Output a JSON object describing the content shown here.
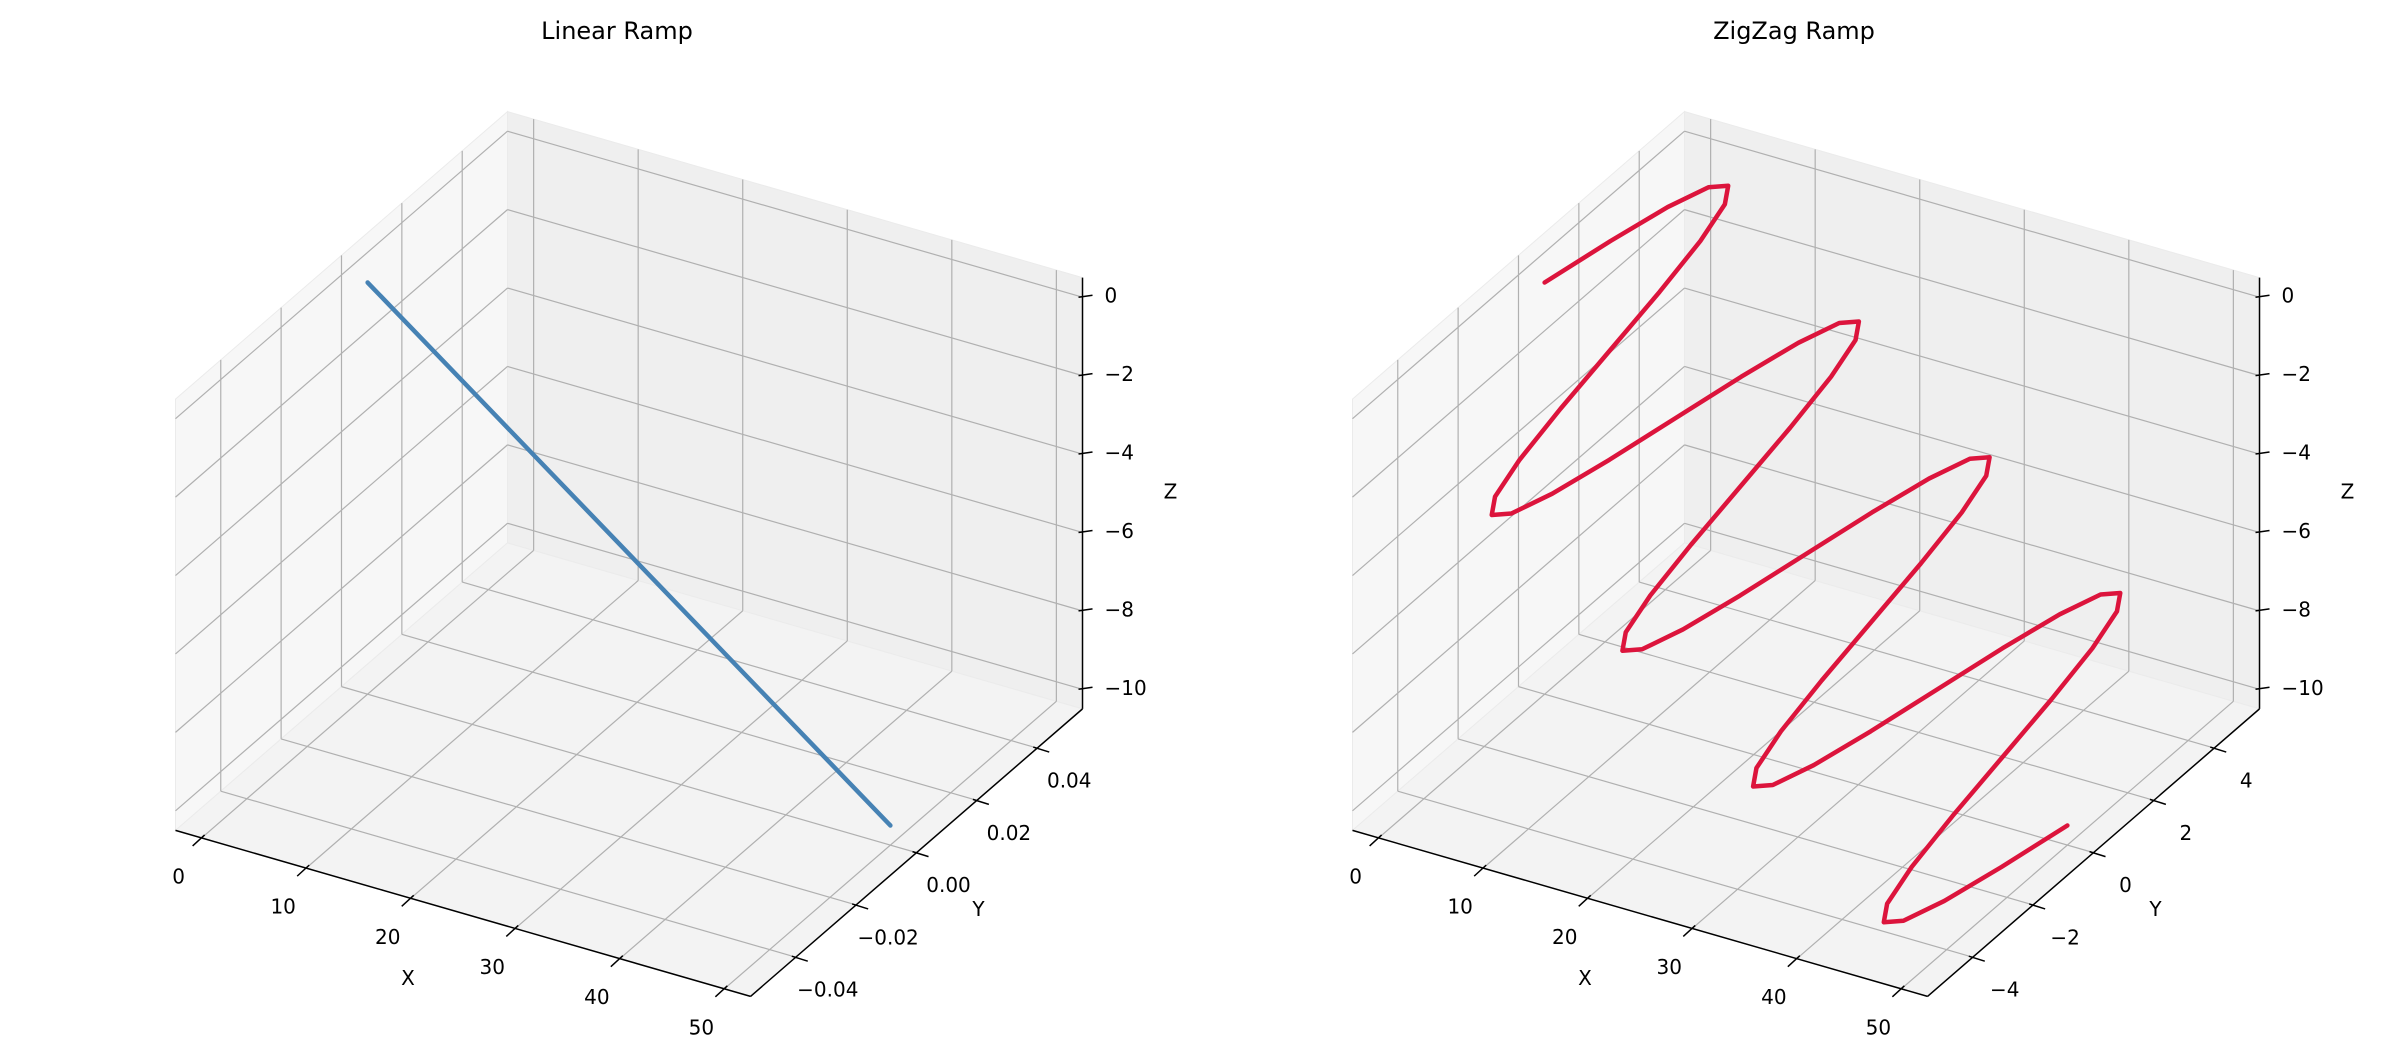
{
  "chart_data": [
    {
      "type": "line3d",
      "title": "Linear Ramp",
      "xlabel": "X",
      "ylabel": "Y",
      "zlabel": "Z",
      "series": [
        {
          "color": "#4682b4",
          "x": [
            0,
            50
          ],
          "y": [
            0,
            0
          ],
          "z": [
            0,
            -10
          ]
        }
      ],
      "xlim": [
        -2.5,
        52.5
      ],
      "ylim": [
        -0.055,
        0.055
      ],
      "zlim": [
        -10.5,
        0.5
      ],
      "xticks": [
        0,
        10,
        20,
        30,
        40,
        50
      ],
      "yticks": [
        {
          "value": -0.04,
          "label": "−0.04"
        },
        {
          "value": -0.02,
          "label": "−0.02"
        },
        {
          "value": 0,
          "label": "0.00"
        },
        {
          "value": 0.02,
          "label": "0.02"
        },
        {
          "value": 0.04,
          "label": "0.04"
        }
      ],
      "zticks": [
        {
          "value": -10,
          "label": "−10"
        },
        {
          "value": -8,
          "label": "−8"
        },
        {
          "value": -6,
          "label": "−6"
        },
        {
          "value": -4,
          "label": "−4"
        },
        {
          "value": -2,
          "label": "−2"
        },
        0
      ],
      "grid": true
    },
    {
      "type": "line3d",
      "title": "ZigZag Ramp",
      "xlabel": "X",
      "ylabel": "Y",
      "zlabel": "Z",
      "series": [
        {
          "color": "#dc143c",
          "x": [
            0,
            0.78125,
            1.5625,
            2.34375,
            3.125,
            3.90625,
            4.6875,
            5.46875,
            6.25,
            7.03125,
            7.8125,
            8.59375,
            9.375,
            10.15625,
            10.9375,
            11.71875,
            12.5,
            13.28125,
            14.0625,
            14.84375,
            15.625,
            16.40625,
            17.1875,
            17.96875,
            18.75,
            19.53125,
            20.3125,
            21.09375,
            21.875,
            22.65625,
            23.4375,
            24.21875,
            25,
            25.78125,
            26.5625,
            27.34375,
            28.125,
            28.90625,
            29.6875,
            30.46875,
            31.25,
            32.03125,
            32.8125,
            33.59375,
            34.375,
            35.15625,
            35.9375,
            36.71875,
            37.5,
            38.28125,
            39.0625,
            39.84375,
            40.625,
            41.40625,
            42.1875,
            42.96875,
            43.75,
            44.53125,
            45.3125,
            46.09375,
            46.875,
            47.65625,
            48.4375,
            49.21875,
            50
          ],
          "y": [
            0,
            1.913,
            3.536,
            4.619,
            5,
            4.619,
            3.536,
            1.913,
            0,
            -1.913,
            -3.536,
            -4.619,
            -5,
            -4.619,
            -3.536,
            -1.913,
            0,
            1.913,
            3.536,
            4.619,
            5,
            4.619,
            3.536,
            1.913,
            0,
            -1.913,
            -3.536,
            -4.619,
            -5,
            -4.619,
            -3.536,
            -1.913,
            0,
            1.913,
            3.536,
            4.619,
            5,
            4.619,
            3.536,
            1.913,
            0,
            -1.913,
            -3.536,
            -4.619,
            -5,
            -4.619,
            -3.536,
            -1.913,
            0,
            1.913,
            3.536,
            4.619,
            5,
            4.619,
            3.536,
            1.913,
            0,
            -1.913,
            -3.536,
            -4.619,
            -5,
            -4.619,
            -3.536,
            -1.913,
            0
          ],
          "z": [
            0,
            -0.15625,
            -0.3125,
            -0.46875,
            -0.625,
            -0.78125,
            -0.9375,
            -1.09375,
            -1.25,
            -1.40625,
            -1.5625,
            -1.71875,
            -1.875,
            -2.03125,
            -2.1875,
            -2.34375,
            -2.5,
            -2.65625,
            -2.8125,
            -2.96875,
            -3.125,
            -3.28125,
            -3.4375,
            -3.59375,
            -3.75,
            -3.90625,
            -4.0625,
            -4.21875,
            -4.375,
            -4.53125,
            -4.6875,
            -4.84375,
            -5,
            -5.15625,
            -5.3125,
            -5.46875,
            -5.625,
            -5.78125,
            -5.9375,
            -6.09375,
            -6.25,
            -6.40625,
            -6.5625,
            -6.71875,
            -6.875,
            -7.03125,
            -7.1875,
            -7.34375,
            -7.5,
            -7.65625,
            -7.8125,
            -7.96875,
            -8.125,
            -8.28125,
            -8.4375,
            -8.59375,
            -8.75,
            -8.90625,
            -9.0625,
            -9.21875,
            -9.375,
            -9.53125,
            -9.6875,
            -9.84375,
            -10
          ]
        }
      ],
      "xlim": [
        -2.5,
        52.5
      ],
      "ylim": [
        -5.5,
        5.5
      ],
      "zlim": [
        -10.5,
        0.5
      ],
      "xticks": [
        0,
        10,
        20,
        30,
        40,
        50
      ],
      "yticks": [
        {
          "value": -4,
          "label": "−4"
        },
        {
          "value": -2,
          "label": "−2"
        },
        0,
        2,
        4
      ],
      "zticks": [
        {
          "value": -10,
          "label": "−10"
        },
        {
          "value": -8,
          "label": "−8"
        },
        {
          "value": -6,
          "label": "−6"
        },
        {
          "value": -4,
          "label": "−4"
        },
        {
          "value": -2,
          "label": "−2"
        },
        0
      ],
      "grid": true
    }
  ]
}
